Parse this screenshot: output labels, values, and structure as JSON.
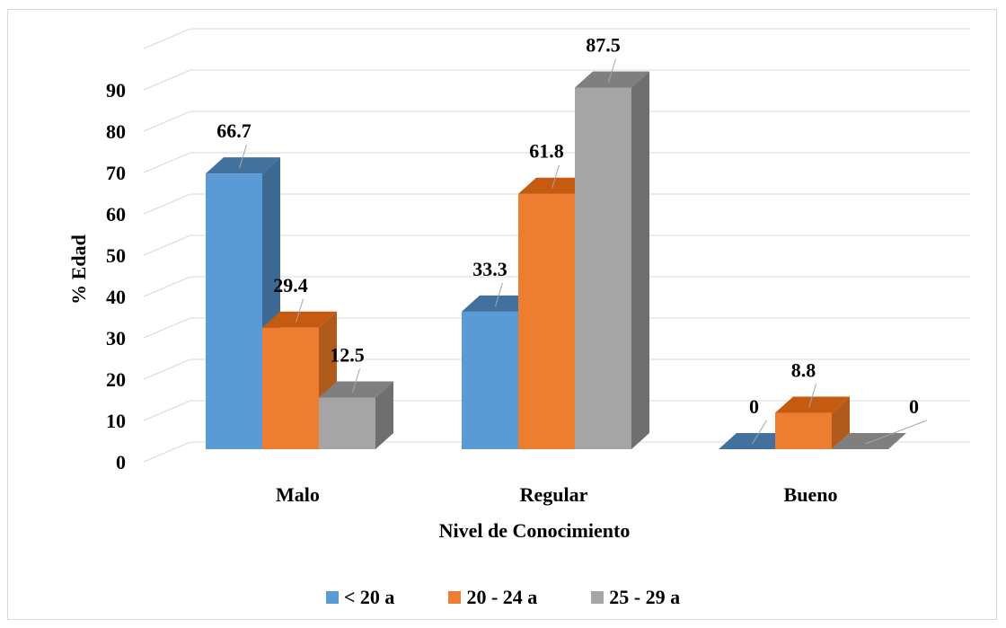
{
  "chart_data": {
    "type": "bar",
    "title": "",
    "xlabel": "Nivel de Conocimiento",
    "ylabel": "% Edad",
    "categories": [
      "Malo",
      "Regular",
      "Bueno"
    ],
    "ylim": [
      0,
      90
    ],
    "yticks": [
      0,
      10,
      20,
      30,
      40,
      50,
      60,
      70,
      80,
      90
    ],
    "series": [
      {
        "name": "< 20 a",
        "values": [
          66.7,
          33.3,
          0
        ],
        "color": "#5b9bd5",
        "top": "#41719c",
        "side": "#3d6a92"
      },
      {
        "name": "20 - 24 a",
        "values": [
          29.4,
          61.8,
          8.8
        ],
        "color": "#ed7d31",
        "top": "#c55a11",
        "side": "#b05a1c"
      },
      {
        "name": "25 - 29 a",
        "values": [
          12.5,
          87.5,
          0
        ],
        "color": "#a5a5a5",
        "top": "#7f7f7f",
        "side": "#6f6f6f"
      }
    ],
    "data_labels": [
      [
        "66.7",
        "33.3",
        "0"
      ],
      [
        "29.4",
        "61.8",
        "8.8"
      ],
      [
        "12.5",
        "87.5",
        "0"
      ]
    ],
    "grid": true,
    "legend": "bottom"
  }
}
